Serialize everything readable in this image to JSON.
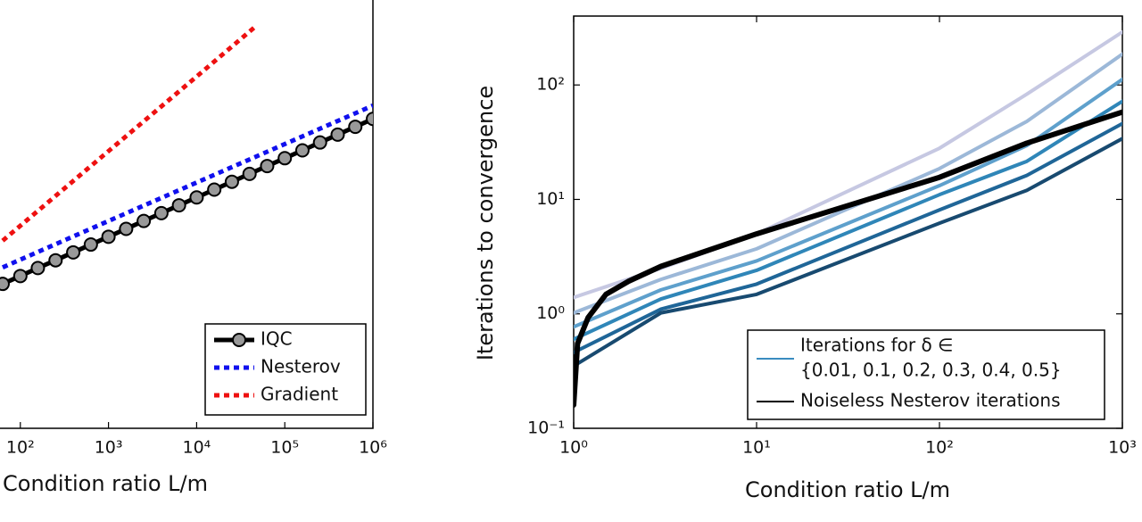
{
  "chart_data": [
    {
      "type": "line",
      "xlog": true,
      "ylog": true,
      "xlabel": "Condition ratio L/m",
      "xlim": [
        10,
        1000000
      ],
      "ylim": [
        1,
        1000000
      ],
      "xticks": [
        {
          "value": 100,
          "label": "10²"
        },
        {
          "value": 1000,
          "label": "10³"
        },
        {
          "value": 10000,
          "label": "10⁴"
        },
        {
          "value": 100000,
          "label": "10⁵"
        },
        {
          "value": 1000000,
          "label": "10⁶"
        }
      ],
      "legend_position": "lower right",
      "series": [
        {
          "name": "IQC",
          "color": "#000000",
          "style": "solid",
          "marker": "circle",
          "marker_color": "#999999",
          "x": [
            63,
            100,
            158,
            251,
            398,
            631,
            1000,
            1585,
            2512,
            3981,
            6310,
            10000,
            15849,
            25119,
            39811,
            63096,
            100000,
            158489,
            251189,
            398107,
            630957,
            1000000
          ],
          "values": [
            69,
            87,
            110,
            138,
            174,
            219,
            275,
            347,
            437,
            550,
            692,
            871,
            1096,
            1380,
            1738,
            2188,
            2754,
            3467,
            4365,
            5495,
            6918,
            8710
          ]
        },
        {
          "name": "Nesterov",
          "color": "#1010ee",
          "style": "dotted",
          "x": [
            63,
            1000,
            10000,
            100000,
            1000000
          ],
          "values": [
            112,
            437,
            1349,
            4169,
            12882
          ]
        },
        {
          "name": "Gradient",
          "color": "#ee1010",
          "style": "dotted",
          "x": [
            63,
            1000,
            10000,
            45709
          ],
          "values": [
            245,
            3388,
            30200,
            128825
          ]
        }
      ]
    },
    {
      "type": "line",
      "xlog": true,
      "ylog": true,
      "xlabel": "Condition ratio L/m",
      "ylabel": "Iterations to convergence",
      "xlim": [
        1,
        1000
      ],
      "ylim": [
        0.1,
        400
      ],
      "xticks": [
        {
          "value": 1,
          "label": "10⁰"
        },
        {
          "value": 10,
          "label": "10¹"
        },
        {
          "value": 100,
          "label": "10²"
        },
        {
          "value": 1000,
          "label": "10³"
        }
      ],
      "yticks": [
        {
          "value": 0.1,
          "label": "10⁻¹"
        },
        {
          "value": 1,
          "label": "10⁰"
        },
        {
          "value": 10,
          "label": "10¹"
        },
        {
          "value": 100,
          "label": "10²"
        }
      ],
      "legend_position": "lower right",
      "legend": [
        {
          "label": [
            "Iterations for δ ∈",
            "{0.01, 0.1, 0.2, 0.3, 0.4, 0.5}"
          ],
          "color": "#3a8cc0"
        },
        {
          "label": [
            "Noiseless Nesterov iterations"
          ],
          "color": "#000000"
        }
      ],
      "series": [
        {
          "color": "#c6c8e2",
          "width": 4,
          "x": [
            1,
            3,
            10,
            100,
            300,
            1000
          ],
          "values": [
            1.39,
            2.5,
            5.0,
            28,
            83,
            290
          ]
        },
        {
          "color": "#9cb8d8",
          "width": 4,
          "x": [
            1,
            3,
            10,
            100,
            300,
            1000
          ],
          "values": [
            1.02,
            2.0,
            3.7,
            18.6,
            48,
            186
          ]
        },
        {
          "color": "#5ea0cc",
          "width": 4,
          "x": [
            1,
            3,
            10,
            100,
            300,
            1000
          ],
          "values": [
            0.77,
            1.62,
            2.9,
            13.2,
            29.5,
            112
          ]
        },
        {
          "color": "#2f86b8",
          "width": 4,
          "x": [
            1,
            3,
            10,
            100,
            300,
            1000
          ],
          "values": [
            0.6,
            1.35,
            2.4,
            11,
            21.5,
            72
          ]
        },
        {
          "color": "#1f6698",
          "width": 4,
          "x": [
            1,
            3,
            10,
            100,
            300,
            1000
          ],
          "values": [
            0.46,
            1.1,
            1.82,
            8.1,
            16.2,
            46
          ]
        },
        {
          "color": "#184a70",
          "width": 4,
          "x": [
            1,
            3,
            10,
            100,
            300,
            1000
          ],
          "values": [
            0.35,
            1.02,
            1.48,
            6.2,
            12,
            34
          ]
        },
        {
          "color": "#000000",
          "width": 6,
          "x": [
            1,
            1.05,
            1.2,
            1.5,
            2,
            3,
            10,
            100,
            300,
            1000
          ],
          "values": [
            0.16,
            0.55,
            0.93,
            1.48,
            1.93,
            2.6,
            5.0,
            15.6,
            31,
            58
          ]
        }
      ]
    }
  ]
}
